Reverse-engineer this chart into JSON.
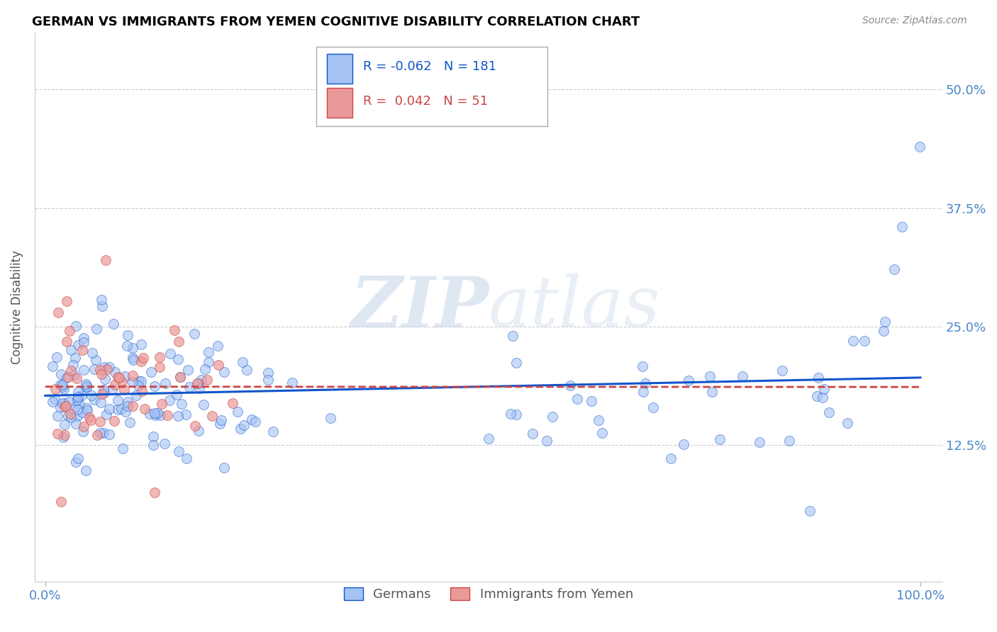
{
  "title": "GERMAN VS IMMIGRANTS FROM YEMEN COGNITIVE DISABILITY CORRELATION CHART",
  "source": "Source: ZipAtlas.com",
  "ylabel": "Cognitive Disability",
  "watermark": "ZIPatlas",
  "legend_german": "Germans",
  "legend_yemen": "Immigrants from Yemen",
  "r_german": -0.062,
  "n_german": 181,
  "r_yemen": 0.042,
  "n_yemen": 51,
  "color_german": "#a4c2f4",
  "color_yemen": "#ea9999",
  "trendline_german_color": "#1155cc",
  "trendline_yemen_color": "#cc4444",
  "background_color": "#ffffff",
  "grid_color": "#cccccc",
  "title_color": "#000000",
  "axis_label_color": "#4a86c8"
}
